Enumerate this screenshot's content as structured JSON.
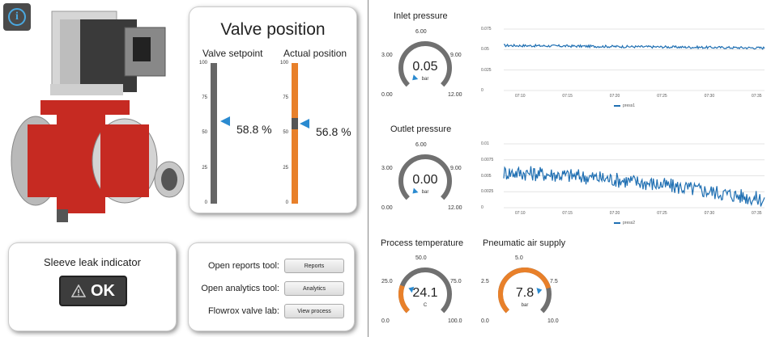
{
  "info_button": {
    "glyph": "i"
  },
  "valve_position": {
    "title": "Valve position",
    "setpoint": {
      "label": "Valve setpoint",
      "value": 58.8,
      "display": "58.8 %"
    },
    "actual": {
      "label": "Actual position",
      "value": 56.8,
      "display": "56.8 %"
    },
    "scale": [
      "100",
      "75",
      "50",
      "25",
      "0"
    ]
  },
  "sleeve_leak": {
    "title": "Sleeve leak indicator",
    "status": "OK"
  },
  "tools": [
    {
      "label": "Open reports tool:",
      "button": "Reports"
    },
    {
      "label": "Open analytics tool:",
      "button": "Analytics"
    },
    {
      "label": "Flowrox valve lab:",
      "button": "View process"
    }
  ],
  "gauges": {
    "inlet": {
      "title": "Inlet pressure",
      "value": "0.05",
      "unit": "bar",
      "fraction": 0.004,
      "ticks": [
        "0.00",
        "3.00",
        "6.00",
        "9.00",
        "12.00"
      ]
    },
    "outlet": {
      "title": "Outlet pressure",
      "value": "0.00",
      "unit": "bar",
      "fraction": 0.0,
      "ticks": [
        "0.00",
        "3.00",
        "6.00",
        "9.00",
        "12.00"
      ]
    },
    "temperature": {
      "title": "Process temperature",
      "value": "24.1",
      "unit": "C",
      "fraction": 0.241,
      "ticks": [
        "0.0",
        "25.0",
        "50.0",
        "75.0",
        "100.0"
      ]
    },
    "air": {
      "title": "Pneumatic air supply",
      "value": "7.8",
      "unit": "bar",
      "fraction": 0.78,
      "ticks": [
        "0.0",
        "2.5",
        "5.0",
        "7.5",
        "10.0"
      ]
    }
  },
  "colors": {
    "accent_orange": "#e8802a",
    "bar_gray": "#666666",
    "marker_blue": "#2a8ad0",
    "line_blue": "#1f6fb2"
  },
  "chart_data": [
    {
      "type": "line",
      "series": [
        {
          "name": "press1"
        }
      ],
      "x_ticks": [
        "07:10",
        "07:15",
        "07:20",
        "07:25",
        "07:30",
        "07:35"
      ],
      "y_ticks": [
        "0.075",
        "0.05",
        "0.025",
        "0"
      ],
      "ylim": [
        0,
        0.075
      ],
      "approx_level_start": 0.055,
      "approx_level_end": 0.052,
      "noise": 0.0015
    },
    {
      "type": "line",
      "series": [
        {
          "name": "press2"
        }
      ],
      "x_ticks": [
        "07:10",
        "07:15",
        "07:20",
        "07:25",
        "07:30",
        "07:35"
      ],
      "y_ticks": [
        "0.01",
        "0.0075",
        "0.005",
        "0.0025",
        "0"
      ],
      "ylim": [
        0,
        0.01
      ],
      "approx_level_start": 0.0055,
      "approx_level_end": 0.0012,
      "noise": 0.0012
    }
  ]
}
